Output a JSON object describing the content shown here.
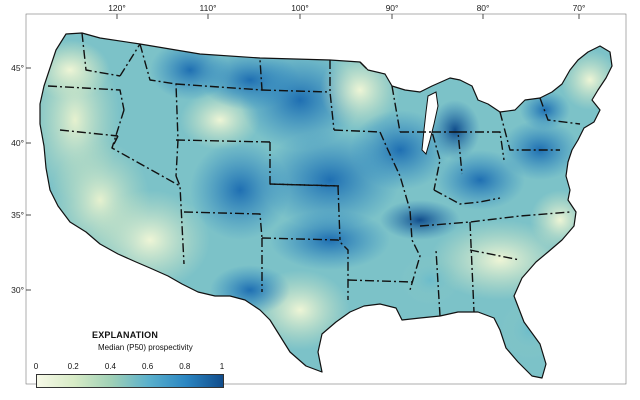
{
  "map": {
    "region": "Conterminous United States",
    "colors": {
      "low": "#f7f9e8",
      "mid_low": "#c9e3c0",
      "mid": "#7cc2c8",
      "mid_high": "#3a96c9",
      "high": "#114d8c",
      "borders": "#111111"
    },
    "longitude_labels": [
      {
        "value": "120°",
        "lon": -120
      },
      {
        "value": "110°",
        "lon": -110
      },
      {
        "value": "100°",
        "lon": -100
      },
      {
        "value": "90°",
        "lon": -90
      },
      {
        "value": "80°",
        "lon": -80
      },
      {
        "value": "70°",
        "lon": -70
      }
    ],
    "latitude_labels": [
      {
        "value": "45°",
        "lat": 45
      },
      {
        "value": "40°",
        "lat": 40
      },
      {
        "value": "35°",
        "lat": 35
      },
      {
        "value": "30°",
        "lat": 30
      }
    ]
  },
  "legend": {
    "title": "EXPLANATION",
    "subtitle": "Median (P50) prospectivity",
    "scale_labels": [
      "0",
      "0.2",
      "0.4",
      "0.6",
      "0.8",
      "1"
    ],
    "min": 0,
    "max": 1
  }
}
